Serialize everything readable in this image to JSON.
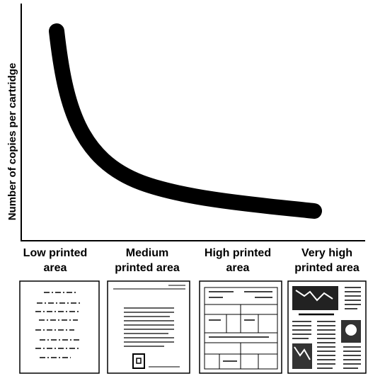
{
  "y_axis_label": "Number of copies per cartridge",
  "categories": [
    [
      "Low printed",
      "area"
    ],
    [
      "Medium",
      "printed area"
    ],
    [
      "High printed",
      "area"
    ],
    [
      "Very high",
      "printed area"
    ]
  ]
}
